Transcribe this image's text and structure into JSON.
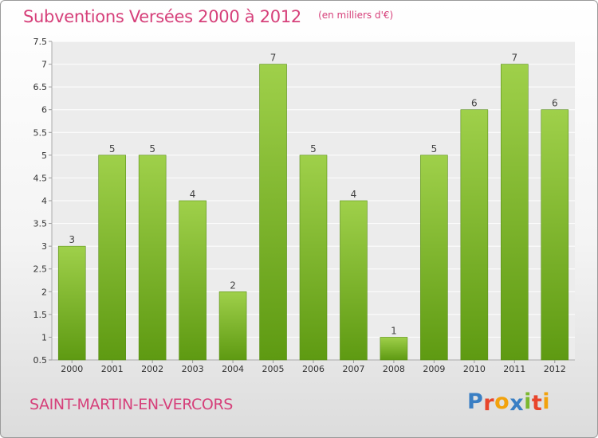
{
  "header": {
    "title": "Subventions Versées 2000 à 2012",
    "unit_note": "(en milliers d'€)"
  },
  "footer": {
    "commune": "SAINT-MARTIN-EN-VERCORS",
    "logo_letters": [
      {
        "ch": "P",
        "color": "#3a7fc4"
      },
      {
        "ch": "r",
        "color": "#e8452b"
      },
      {
        "ch": "o",
        "color": "#f2a20c"
      },
      {
        "ch": "x",
        "color": "#3a7fc4"
      },
      {
        "ch": "i",
        "color": "#7bb830"
      },
      {
        "ch": "t",
        "color": "#e8452b"
      },
      {
        "ch": "i",
        "color": "#f2a20c"
      }
    ]
  },
  "chart_data": {
    "type": "bar",
    "title": "Subventions Versées 2000 à 2012",
    "subtitle": "(en milliers d'€)",
    "categories": [
      "2000",
      "2001",
      "2002",
      "2003",
      "2004",
      "2005",
      "2006",
      "2007",
      "2008",
      "2009",
      "2010",
      "2011",
      "2012"
    ],
    "values": [
      3,
      5,
      5,
      4,
      2,
      7,
      5,
      4,
      1,
      5,
      6,
      7,
      6
    ],
    "ylim": [
      0.5,
      7.5
    ],
    "yticks": [
      "0.5",
      "1",
      "1.5",
      "2",
      "2.5",
      "3",
      "3.5",
      "4",
      "4.5",
      "5",
      "5.5",
      "6",
      "6.5",
      "7",
      "7.5"
    ],
    "grid": "horizontal",
    "bar_color_top": "#9fd04a",
    "bar_color_bottom": "#5e9a12"
  }
}
